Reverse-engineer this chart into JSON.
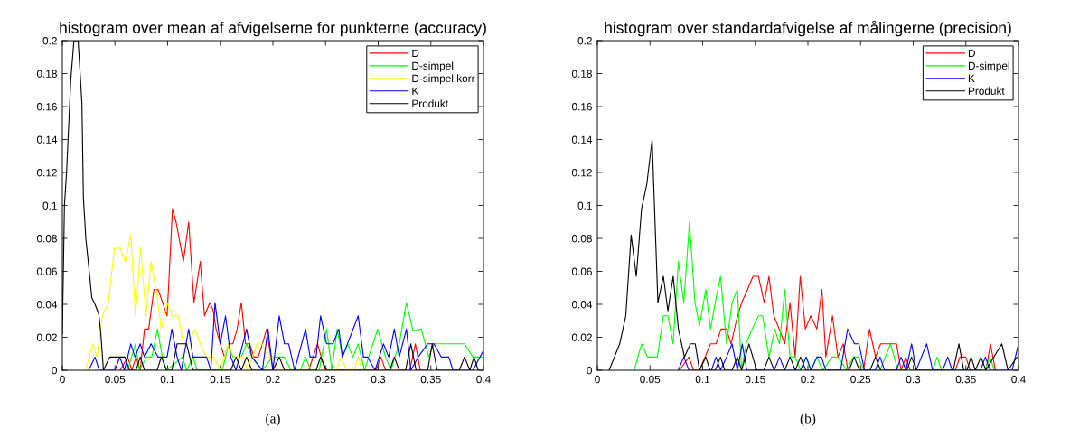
{
  "chart_data": [
    {
      "type": "line",
      "title": "histogram over mean af afvigelserne for punkterne (accuracy)",
      "annotations": [
        "(a)"
      ],
      "xlim": [
        0,
        0.4
      ],
      "ylim": [
        0,
        0.2
      ],
      "xticks": [
        0,
        0.05,
        0.1,
        0.15,
        0.2,
        0.25,
        0.3,
        0.35,
        0.4
      ],
      "yticks": [
        0,
        0.02,
        0.04,
        0.06,
        0.08,
        0.1,
        0.12,
        0.14,
        0.16,
        0.18,
        0.2
      ],
      "legend": "top right",
      "series": [
        {
          "name": "D",
          "color": "#ff0000",
          "x": [
            0.055,
            0.062,
            0.066,
            0.07,
            0.074,
            0.078,
            0.082,
            0.087,
            0.091,
            0.0995,
            0.1046,
            0.108,
            0.115,
            0.12,
            0.125,
            0.131,
            0.135,
            0.14,
            0.143,
            0.146,
            0.15,
            0.154,
            0.158,
            0.162,
            0.166,
            0.17,
            0.174,
            0.178,
            0.182,
            0.186,
            0.19,
            0.194,
            0.2,
            0.234,
            0.2424,
            0.2495,
            0.298,
            0.3025,
            0.307,
            0.33,
            0.3353,
            0.34
          ],
          "values": [
            0,
            0.008,
            0,
            0.008,
            0,
            0.025,
            0.025,
            0.049,
            0.049,
            0.033,
            0.098,
            0.09,
            0.066,
            0.09,
            0.041,
            0.066,
            0.033,
            0.041,
            0.037,
            0.025,
            0.016,
            0.008,
            0.016,
            0.016,
            0.025,
            0.041,
            0.016,
            0.016,
            0.008,
            0.008,
            0.016,
            0.025,
            0,
            0,
            0.016,
            0,
            0,
            0.008,
            0,
            0,
            0.016,
            0
          ]
        },
        {
          "name": "D-simpel",
          "color": "#00ff00",
          "x": [
            0.062,
            0.0695,
            0.073,
            0.08,
            0.085,
            0.0903,
            0.095,
            0.099,
            0.114,
            0.118,
            0.124,
            0.128,
            0.152,
            0.158,
            0.162,
            0.17,
            0.175,
            0.18,
            0.19,
            0.1996,
            0.211,
            0.217,
            0.226,
            0.231,
            0.236,
            0.244,
            0.251,
            0.256,
            0.261,
            0.266,
            0.271,
            0.276,
            0.281,
            0.287,
            0.2995,
            0.307,
            0.312,
            0.32,
            0.3268,
            0.333,
            0.341,
            0.348,
            0.353,
            0.361,
            0.382,
            0.39,
            0.4
          ],
          "values": [
            0,
            0.016,
            0,
            0.008,
            0.008,
            0.025,
            0.008,
            0,
            0.008,
            0,
            0.008,
            0,
            0,
            0.016,
            0.008,
            0.008,
            0.016,
            0.008,
            0,
            0.008,
            0.008,
            0,
            0,
            0.008,
            0,
            0,
            0.025,
            0,
            0.025,
            0.008,
            0.016,
            0.008,
            0.016,
            0,
            0.025,
            0.008,
            0,
            0.016,
            0.041,
            0.024,
            0.025,
            0.008,
            0.016,
            0.016,
            0.016,
            0.008,
            0.008
          ]
        },
        {
          "name": "D-simpel,korr",
          "color": "#ffff00",
          "x": [
            0.022,
            0.0289,
            0.033,
            0.038,
            0.0437,
            0.0495,
            0.055,
            0.06,
            0.065,
            0.0695,
            0.0743,
            0.0795,
            0.0843,
            0.089,
            0.094,
            0.0995,
            0.104,
            0.11,
            0.115,
            0.12,
            0.126,
            0.131,
            0.137,
            0.144,
            0.15,
            0.158,
            0.163,
            0.172,
            0.176,
            0.185,
            0.19,
            0.195,
            0.2,
            0.205,
            0.26,
            0.265,
            0.27,
            0.277,
            0.281,
            0.285
          ],
          "values": [
            0,
            0.016,
            0.008,
            0.033,
            0.041,
            0.074,
            0.074,
            0.066,
            0.082,
            0.033,
            0.074,
            0.033,
            0.066,
            0.049,
            0.025,
            0.041,
            0.033,
            0.033,
            0.016,
            0.016,
            0.025,
            0.016,
            0.008,
            0.008,
            0,
            0.016,
            0.008,
            0.008,
            0,
            0.016,
            0.016,
            0.008,
            0.008,
            0,
            0,
            0.008,
            0,
            0,
            0.008,
            0
          ]
        },
        {
          "name": "K",
          "color": "#0000ff",
          "x": [
            0.025,
            0.031,
            0.035,
            0.05,
            0.0546,
            0.059,
            0.065,
            0.069,
            0.074,
            0.078,
            0.0843,
            0.0909,
            0.0995,
            0.104,
            0.109,
            0.113,
            0.12,
            0.124,
            0.131,
            0.137,
            0.141,
            0.145,
            0.15,
            0.155,
            0.16,
            0.165,
            0.175,
            0.18,
            0.19,
            0.1953,
            0.2,
            0.206,
            0.211,
            0.215,
            0.2206,
            0.231,
            0.2353,
            0.241,
            0.2453,
            0.251,
            0.257,
            0.2626,
            0.266,
            0.281,
            0.286,
            0.29,
            0.297,
            0.305,
            0.31,
            0.3153,
            0.32,
            0.3268,
            0.331,
            0.338,
            0.347,
            0.353,
            0.36,
            0.367,
            0.371,
            0.39,
            0.4
          ],
          "values": [
            0,
            0.008,
            0,
            0,
            0.008,
            0,
            0.016,
            0.008,
            0.016,
            0.008,
            0.016,
            0.008,
            0.008,
            0.025,
            0.008,
            0,
            0.025,
            0.008,
            0.008,
            0.008,
            0,
            0.041,
            0.016,
            0.033,
            0.008,
            0,
            0.025,
            0.008,
            0,
            0.025,
            0,
            0.033,
            0.016,
            0.016,
            0,
            0.025,
            0.008,
            0.008,
            0.033,
            0.016,
            0.016,
            0.025,
            0.008,
            0.033,
            0.008,
            0.008,
            0,
            0.016,
            0.008,
            0.025,
            0.008,
            0.025,
            0,
            0.008,
            0.016,
            0.016,
            0.008,
            0.008,
            0,
            0,
            0.012
          ]
        },
        {
          "name": "Produkt",
          "color": "#000000",
          "x": [
            0.0,
            0.002,
            0.004,
            0.008,
            0.011,
            0.015,
            0.0186,
            0.02,
            0.0223,
            0.0252,
            0.028,
            0.031,
            0.0346,
            0.0366,
            0.039,
            0.045,
            0.0595,
            0.0637,
            0.07,
            0.074,
            0.078,
            0.09,
            0.094,
            0.099,
            0.104,
            0.109,
            0.118,
            0.124,
            0.16,
            0.165,
            0.17,
            0.175,
            0.18,
            0.2,
            0.206,
            0.211,
            0.241,
            0.2453,
            0.251,
            0.311,
            0.3153,
            0.32,
            0.326,
            0.331,
            0.336,
            0.347,
            0.3513,
            0.356,
            0.377,
            0.382,
            0.387,
            0.391,
            0.395
          ],
          "values": [
            0.022,
            0.1,
            0.12,
            0.176,
            0.2,
            0.2,
            0.162,
            0.105,
            0.08,
            0.062,
            0.044,
            0.04,
            0.034,
            0.022,
            0,
            0.008,
            0.008,
            0,
            0,
            0.008,
            0,
            0,
            0.008,
            0,
            0,
            0.016,
            0.016,
            0,
            0,
            0.008,
            0,
            0.008,
            0,
            0,
            0.008,
            0,
            0,
            0.008,
            0,
            0,
            0.008,
            0,
            0,
            0.016,
            0,
            0,
            0.016,
            0,
            0,
            0.008,
            0,
            0.008,
            0
          ]
        }
      ]
    },
    {
      "type": "line",
      "title": "histogram over standardafvigelse af målingerne (precision)",
      "annotations": [
        "(b)"
      ],
      "xlim": [
        0,
        0.4
      ],
      "ylim": [
        0,
        0.2
      ],
      "xticks": [
        0,
        0.05,
        0.1,
        0.15,
        0.2,
        0.25,
        0.3,
        0.35,
        0.4
      ],
      "yticks": [
        0,
        0.02,
        0.04,
        0.06,
        0.08,
        0.1,
        0.12,
        0.14,
        0.16,
        0.18,
        0.2
      ],
      "legend": "top right",
      "series": [
        {
          "name": "D",
          "color": "#ff0000",
          "x": [
            0.078,
            0.087,
            0.0913,
            0.097,
            0.1075,
            0.1127,
            0.1175,
            0.1227,
            0.127,
            0.132,
            0.137,
            0.1427,
            0.1478,
            0.153,
            0.1585,
            0.163,
            0.1676,
            0.1727,
            0.178,
            0.183,
            0.1879,
            0.1927,
            0.1976,
            0.2027,
            0.2085,
            0.2133,
            0.217,
            0.2233,
            0.2285,
            0.2336,
            0.238,
            0.2528,
            0.2585,
            0.2642,
            0.269,
            0.2842,
            0.2885,
            0.293,
            0.297,
            0.34,
            0.3443,
            0.35,
            0.354,
            0.369,
            0.3734,
            0.378
          ],
          "values": [
            0,
            0.008,
            0,
            0,
            0.016,
            0.016,
            0.025,
            0.025,
            0.016,
            0.03,
            0.041,
            0.049,
            0.057,
            0.057,
            0.041,
            0.057,
            0.033,
            0.025,
            0.016,
            0.041,
            0.008,
            0.057,
            0.025,
            0.033,
            0.025,
            0.049,
            0.008,
            0.033,
            0.008,
            0.016,
            0,
            0,
            0.025,
            0.008,
            0.016,
            0.016,
            0,
            0.008,
            0,
            0,
            0.008,
            0.008,
            0,
            0,
            0.016,
            0
          ]
        },
        {
          "name": "D-simpel",
          "color": "#00ff00",
          "x": [
            0.035,
            0.042,
            0.0478,
            0.057,
            0.0627,
            0.067,
            0.072,
            0.0769,
            0.0821,
            0.0875,
            0.0927,
            0.097,
            0.103,
            0.1075,
            0.112,
            0.117,
            0.1227,
            0.128,
            0.133,
            0.137,
            0.1413,
            0.147,
            0.153,
            0.157,
            0.163,
            0.1685,
            0.173,
            0.178,
            0.183,
            0.188,
            0.193,
            0.198,
            0.2027,
            0.2085,
            0.2142,
            0.2228,
            0.2285,
            0.237,
            0.243,
            0.248,
            0.253,
            0.2685,
            0.2785,
            0.2855,
            0.3185,
            0.3227,
            0.327,
            0.368,
            0.3728,
            0.377
          ],
          "values": [
            0,
            0.016,
            0.008,
            0.008,
            0.033,
            0.033,
            0.016,
            0.066,
            0.041,
            0.09,
            0.041,
            0.027,
            0.049,
            0.025,
            0.041,
            0.057,
            0.016,
            0.041,
            0.049,
            0,
            0.016,
            0.025,
            0.033,
            0.033,
            0.008,
            0.025,
            0.016,
            0.049,
            0.008,
            0.008,
            0,
            0.008,
            0,
            0.008,
            0,
            0.008,
            0.008,
            0,
            0.008,
            0.008,
            0,
            0,
            0.016,
            0,
            0,
            0.008,
            0,
            0,
            0.008,
            0
          ]
        },
        {
          "name": "K",
          "color": "#0000ff",
          "x": [
            0.0769,
            0.0821,
            0.087,
            0.1084,
            0.1127,
            0.117,
            0.1227,
            0.128,
            0.133,
            0.1376,
            0.142,
            0.168,
            0.173,
            0.178,
            0.193,
            0.1985,
            0.203,
            0.2085,
            0.2128,
            0.217,
            0.231,
            0.2377,
            0.2442,
            0.2485,
            0.2537,
            0.264,
            0.2685,
            0.2728,
            0.284,
            0.2885,
            0.293,
            0.2985,
            0.3028,
            0.3128,
            0.3185,
            0.328,
            0.3328,
            0.337,
            0.364,
            0.3685,
            0.373,
            0.394,
            0.4
          ],
          "values": [
            0,
            0.008,
            0,
            0,
            0.008,
            0,
            0.008,
            0.016,
            0,
            0.016,
            0,
            0,
            0.008,
            0,
            0,
            0.008,
            0,
            0.008,
            0.008,
            0,
            0,
            0.025,
            0.016,
            0.016,
            0,
            0,
            0.008,
            0,
            0,
            0.008,
            0,
            0.016,
            0,
            0.016,
            0,
            0,
            0.008,
            0,
            0,
            0.008,
            0,
            0,
            0.016
          ]
        },
        {
          "name": "Produkt",
          "color": "#000000",
          "x": [
            0.0112,
            0.0212,
            0.027,
            0.0321,
            0.037,
            0.042,
            0.047,
            0.052,
            0.0575,
            0.0627,
            0.067,
            0.072,
            0.077,
            0.0827,
            0.0884,
            0.093,
            0.097,
            0.103,
            0.107,
            0.112,
            0.117,
            0.121,
            0.128,
            0.133,
            0.137,
            0.144,
            0.1513,
            0.158,
            0.163,
            0.168,
            0.178,
            0.183,
            0.188,
            0.193,
            0.198,
            0.239,
            0.244,
            0.249,
            0.259,
            0.2642,
            0.269,
            0.294,
            0.2985,
            0.303,
            0.338,
            0.3434,
            0.348,
            0.351,
            0.355,
            0.359,
            0.3643,
            0.369,
            0.3842,
            0.39,
            0.3985
          ],
          "values": [
            0,
            0.016,
            0.033,
            0.082,
            0.057,
            0.098,
            0.113,
            0.14,
            0.041,
            0.057,
            0.036,
            0.057,
            0.025,
            0.008,
            0.016,
            0.016,
            0,
            0.008,
            0,
            0,
            0.008,
            0,
            0,
            0.008,
            0,
            0.016,
            0,
            0,
            0.008,
            0,
            0,
            0.008,
            0,
            0.008,
            0,
            0,
            0.008,
            0,
            0,
            0.008,
            0,
            0,
            0.008,
            0,
            0,
            0.016,
            0,
            0,
            0.008,
            0,
            0.008,
            0,
            0.016,
            0,
            0.008
          ]
        }
      ]
    }
  ]
}
